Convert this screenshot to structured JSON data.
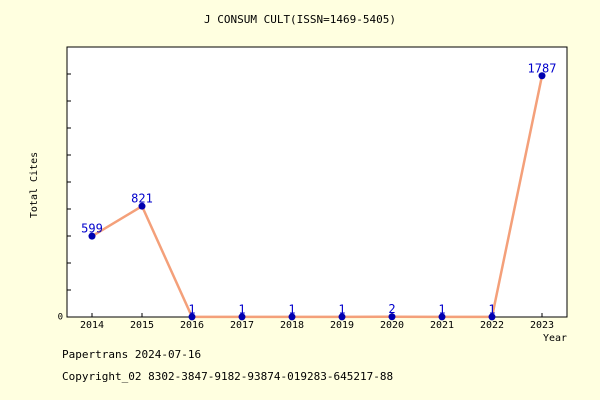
{
  "chart_data": {
    "type": "line",
    "title": "J CONSUM CULT(ISSN=1469-5405)",
    "categories": [
      "2014",
      "2015",
      "2016",
      "2017",
      "2018",
      "2019",
      "2020",
      "2021",
      "2022",
      "2023"
    ],
    "series": [
      {
        "name": "Total Cites",
        "color": "#f4a07a",
        "marker_color": "#0000b0",
        "label_color": "#0000cc",
        "values": [
          599,
          821,
          1,
          1,
          1,
          1,
          2,
          1,
          1,
          1787
        ]
      }
    ],
    "ylabel": "Total Cites",
    "xlabel": "Year",
    "ylim": [
      0,
      2000
    ],
    "yticks": [
      0
    ],
    "yminorticks": [
      200,
      400,
      600,
      800,
      1000,
      1200,
      1400,
      1600,
      1800
    ],
    "footer": [
      "Papertrans 2024-07-16",
      "Copyright_02 8302-3847-9182-93874-019283-645217-88"
    ]
  }
}
